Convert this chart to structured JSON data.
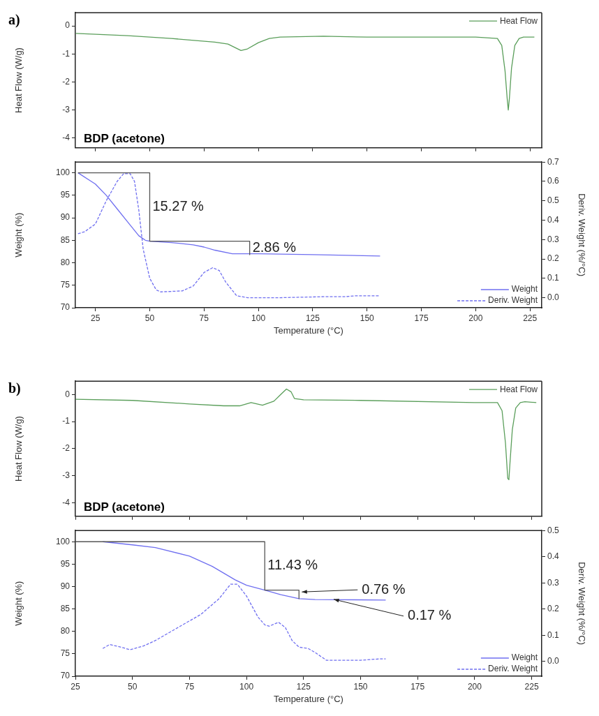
{
  "chart_data": [
    {
      "type": "line",
      "annotations": [
        "a)",
        "BDP (acetone)"
      ],
      "ylabel": "Heat Flow (W/g)",
      "xlim": [
        15.8,
        230.4
      ],
      "xticks": [
        25,
        50,
        75,
        100,
        125,
        150,
        175,
        200,
        225
      ],
      "ylim": [
        -4.35,
        0.47
      ],
      "yticks": [
        -4,
        -3,
        -2,
        -1,
        0
      ],
      "tick_labels": "y",
      "legend": "top right",
      "marker": "none",
      "grid": false,
      "series": [
        {
          "name": "Heat Flow",
          "color": "#5a9e5a",
          "x": [
            16,
            40,
            60,
            80,
            86,
            92,
            95,
            100,
            105,
            110,
            130,
            150,
            200,
            210,
            212,
            213.5,
            214.5,
            215,
            215.5,
            216.5,
            218,
            220,
            222,
            227
          ],
          "values": [
            -0.27,
            -0.35,
            -0.45,
            -0.58,
            -0.65,
            -0.88,
            -0.82,
            -0.6,
            -0.45,
            -0.4,
            -0.37,
            -0.4,
            -0.4,
            -0.45,
            -0.7,
            -1.6,
            -2.6,
            -3.0,
            -2.6,
            -1.5,
            -0.7,
            -0.45,
            -0.4,
            -0.4
          ]
        }
      ]
    },
    {
      "type": "line",
      "xlabel": "Temperature (°C)",
      "ylabel": "Weight (%)",
      "y2label": "Deriv. Weight (%/°C)",
      "xlim": [
        15.8,
        230.4
      ],
      "xticks": [
        25,
        50,
        75,
        100,
        125,
        150,
        175,
        200,
        225
      ],
      "ylim": [
        70,
        102.4
      ],
      "yticks": [
        70,
        75,
        80,
        85,
        90,
        95,
        100
      ],
      "y2lim": [
        -0.052,
        0.7
      ],
      "y2ticks": [
        {
          "value": 0,
          "label": "0.0"
        },
        {
          "value": 0.1,
          "label": "0.1"
        },
        {
          "value": 0.2,
          "label": "0.2"
        },
        {
          "value": 0.3,
          "label": "0.3"
        },
        {
          "value": 0.4,
          "label": "0.4"
        },
        {
          "value": 0.5,
          "label": "0.5"
        },
        {
          "value": 0.6,
          "label": "0.6"
        },
        {
          "value": 0.7,
          "label": "0.7"
        }
      ],
      "legend": "bottom right",
      "marker": "none",
      "grid": false,
      "annotations": [
        {
          "text": "15.27 %",
          "x": 50,
          "y": 92.4
        },
        {
          "text": "2.86 %",
          "x": 96,
          "y": 83.3
        }
      ],
      "series": [
        {
          "color": "#555555",
          "x": [
            17,
            50,
            50,
            96,
            96
          ],
          "values": [
            100,
            100,
            84.8,
            84.8,
            81.8
          ]
        },
        {
          "name": "Weight",
          "color": "#6f6ff0",
          "x": [
            17,
            25,
            30,
            35,
            40,
            45,
            48,
            50,
            60,
            70,
            75,
            80,
            88,
            100,
            125,
            156
          ],
          "values": [
            100,
            97.5,
            95,
            92,
            89,
            86,
            85,
            84.8,
            84.5,
            84,
            83.5,
            82.8,
            82,
            82,
            81.8,
            81.5
          ]
        },
        {
          "name": "Deriv. Weight",
          "color": "#6f6ff0",
          "axis": "y2",
          "line_style": "dashed",
          "x": [
            17,
            20,
            25,
            30,
            35,
            38,
            41,
            43,
            45,
            47,
            50,
            53,
            55,
            65,
            70,
            75,
            79,
            82,
            85,
            90,
            95,
            110,
            130,
            140,
            145,
            156
          ],
          "values": [
            0.33,
            0.34,
            0.38,
            0.5,
            0.6,
            0.64,
            0.64,
            0.6,
            0.45,
            0.25,
            0.1,
            0.04,
            0.03,
            0.035,
            0.06,
            0.13,
            0.155,
            0.14,
            0.08,
            0.01,
            0,
            0,
            0.005,
            0.005,
            0.01,
            0.01
          ]
        }
      ]
    },
    {
      "type": "line",
      "annotations": [
        "b)",
        "BDP (acetone)"
      ],
      "ylabel": "Heat Flow (W/g)",
      "xlim": [
        25,
        229.4
      ],
      "xticks": [
        25,
        50,
        75,
        100,
        125,
        150,
        175,
        200,
        225
      ],
      "ylim": [
        -4.5,
        0.49
      ],
      "yticks": [
        -4,
        -3,
        -2,
        -1,
        0
      ],
      "tick_labels": "y",
      "legend": "top right",
      "marker": "none",
      "grid": false,
      "series": [
        {
          "name": "Heat Flow",
          "color": "#5a9e5a",
          "x": [
            25,
            50,
            75,
            90,
            97,
            102,
            107,
            112,
            115,
            117.5,
            119.5,
            121,
            125,
            150,
            200,
            210,
            212,
            213.5,
            214.5,
            215,
            215.5,
            216.5,
            218,
            220,
            222,
            227
          ],
          "values": [
            -0.18,
            -0.22,
            -0.35,
            -0.42,
            -0.42,
            -0.3,
            -0.4,
            -0.25,
            0,
            0.2,
            0.1,
            -0.15,
            -0.2,
            -0.22,
            -0.3,
            -0.3,
            -0.6,
            -1.8,
            -3.1,
            -3.15,
            -2.5,
            -1.3,
            -0.5,
            -0.3,
            -0.27,
            -0.3
          ]
        }
      ]
    },
    {
      "type": "line",
      "xlabel": "Temperature (°C)",
      "ylabel": "Weight (%)",
      "y2label": "Deriv. Weight (%/°C)",
      "xlim": [
        25,
        229.4
      ],
      "xticks": [
        25,
        50,
        75,
        100,
        125,
        150,
        175,
        200,
        225
      ],
      "ylim": [
        70,
        102.5
      ],
      "yticks": [
        70,
        75,
        80,
        85,
        90,
        95,
        100
      ],
      "y2lim": [
        -0.056,
        0.5
      ],
      "y2ticks": [
        {
          "value": 0,
          "label": "0.0"
        },
        {
          "value": 0.1,
          "label": "0.1"
        },
        {
          "value": 0.2,
          "label": "0.2"
        },
        {
          "value": 0.3,
          "label": "0.3"
        },
        {
          "value": 0.4,
          "label": "0.4"
        },
        {
          "value": 0.5,
          "label": "0.5"
        }
      ],
      "legend": "bottom right",
      "marker": "none",
      "grid": false,
      "annotations": [
        {
          "text": "11.43 %",
          "x": 108,
          "y": 94.6
        },
        {
          "text": "0.76 %",
          "x": 123,
          "y": 88.8
        },
        {
          "text": "0.17 %",
          "x": 137,
          "y": 87.15
        }
      ],
      "series": [
        {
          "color": "#555555",
          "x": [
            25,
            108,
            108,
            123,
            123
          ],
          "values": [
            100,
            100,
            89.2,
            89.2,
            87.3
          ]
        },
        {
          "name": "Weight",
          "color": "#6f6ff0",
          "x": [
            37,
            50,
            60,
            75,
            85,
            95,
            100,
            108,
            115,
            123,
            130,
            161
          ],
          "values": [
            100,
            99.3,
            98.7,
            96.8,
            94.5,
            91.5,
            90.3,
            89.2,
            88.2,
            87.3,
            87.1,
            87
          ]
        },
        {
          "name": "Deriv. Weight",
          "color": "#6f6ff0",
          "axis": "y2",
          "line_style": "dashed",
          "x": [
            37,
            40,
            45,
            49,
            55,
            60,
            70,
            80,
            88,
            93,
            96,
            100,
            105,
            108,
            110,
            114,
            117,
            120,
            123,
            127,
            130,
            135,
            150,
            158,
            161
          ],
          "values": [
            0.05,
            0.065,
            0.055,
            0.045,
            0.06,
            0.08,
            0.13,
            0.18,
            0.24,
            0.295,
            0.295,
            0.25,
            0.17,
            0.14,
            0.135,
            0.15,
            0.13,
            0.08,
            0.055,
            0.05,
            0.035,
            0.005,
            0.005,
            0.01,
            0.01
          ]
        }
      ]
    }
  ]
}
